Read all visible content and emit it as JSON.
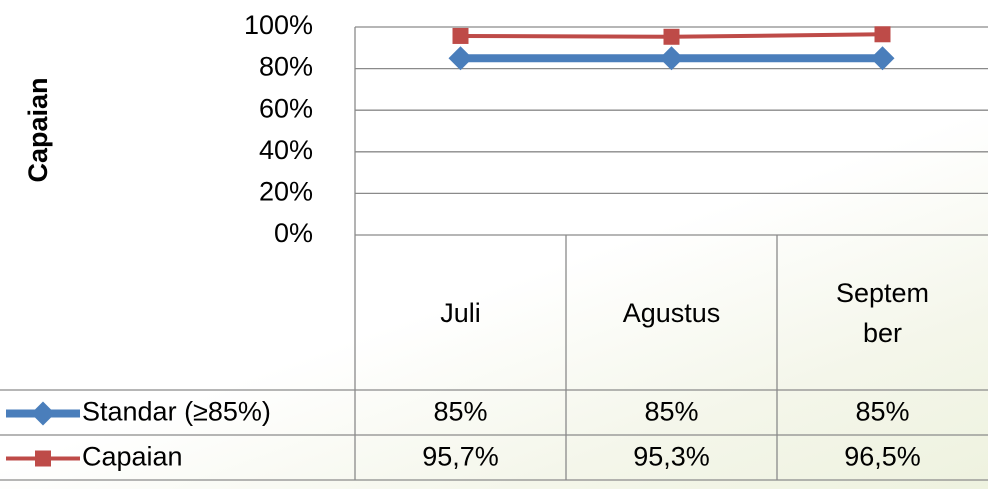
{
  "chart_data": {
    "type": "line",
    "y_label": "Capaian",
    "categories": [
      "Juli",
      "Agustus",
      "September"
    ],
    "series": [
      {
        "name": "Standar (≥85%)",
        "color": "#4a7ebb",
        "marker": "diamond",
        "values": [
          85,
          85,
          85
        ],
        "value_labels": [
          "85%",
          "85%",
          "85%"
        ]
      },
      {
        "name": "Capaian",
        "color": "#be4b48",
        "marker": "square",
        "values": [
          95.7,
          95.3,
          96.5
        ],
        "value_labels": [
          "95,7%",
          "95,3%",
          "96,5%"
        ]
      }
    ],
    "ylim": [
      0,
      100
    ],
    "yticks": [
      {
        "value": 0,
        "label": "0%"
      },
      {
        "value": 20,
        "label": "20%"
      },
      {
        "value": 40,
        "label": "40%"
      },
      {
        "value": 60,
        "label": "60%"
      },
      {
        "value": 80,
        "label": "80%"
      },
      {
        "value": 100,
        "label": "100%"
      }
    ],
    "grid": true,
    "data_table": true
  }
}
